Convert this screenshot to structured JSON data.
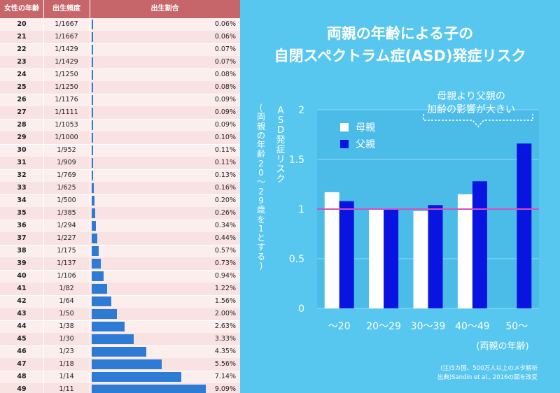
{
  "table": {
    "headers": [
      "女性の年齢",
      "出生頻度",
      "出生割合"
    ],
    "rows": [
      {
        "age": "20",
        "freq": "1/1667",
        "pct": "0.06%",
        "value": 0.06
      },
      {
        "age": "21",
        "freq": "1/1667",
        "pct": "0.06%",
        "value": 0.06
      },
      {
        "age": "22",
        "freq": "1/1429",
        "pct": "0.07%",
        "value": 0.07
      },
      {
        "age": "23",
        "freq": "1/1429",
        "pct": "0.07%",
        "value": 0.07
      },
      {
        "age": "24",
        "freq": "1/1250",
        "pct": "0.08%",
        "value": 0.08
      },
      {
        "age": "25",
        "freq": "1/1250",
        "pct": "0.08%",
        "value": 0.08
      },
      {
        "age": "26",
        "freq": "1/1176",
        "pct": "0.09%",
        "value": 0.09
      },
      {
        "age": "27",
        "freq": "1/1111",
        "pct": "0.09%",
        "value": 0.09
      },
      {
        "age": "28",
        "freq": "1/1053",
        "pct": "0.09%",
        "value": 0.09
      },
      {
        "age": "29",
        "freq": "1/1000",
        "pct": "0.10%",
        "value": 0.1
      },
      {
        "age": "30",
        "freq": "1/952",
        "pct": "0.11%",
        "value": 0.11
      },
      {
        "age": "31",
        "freq": "1/909",
        "pct": "0.11%",
        "value": 0.11
      },
      {
        "age": "32",
        "freq": "1/769",
        "pct": "0.13%",
        "value": 0.13
      },
      {
        "age": "33",
        "freq": "1/625",
        "pct": "0.16%",
        "value": 0.16
      },
      {
        "age": "34",
        "freq": "1/500",
        "pct": "0.20%",
        "value": 0.2
      },
      {
        "age": "35",
        "freq": "1/385",
        "pct": "0.26%",
        "value": 0.26
      },
      {
        "age": "36",
        "freq": "1/294",
        "pct": "0.34%",
        "value": 0.34
      },
      {
        "age": "37",
        "freq": "1/227",
        "pct": "0.44%",
        "value": 0.44
      },
      {
        "age": "38",
        "freq": "1/175",
        "pct": "0.57%",
        "value": 0.57
      },
      {
        "age": "39",
        "freq": "1/137",
        "pct": "0.73%",
        "value": 0.73
      },
      {
        "age": "40",
        "freq": "1/106",
        "pct": "0.94%",
        "value": 0.94
      },
      {
        "age": "41",
        "freq": "1/82",
        "pct": "1.22%",
        "value": 1.22
      },
      {
        "age": "42",
        "freq": "1/64",
        "pct": "1.56%",
        "value": 1.56
      },
      {
        "age": "43",
        "freq": "1/50",
        "pct": "2.00%",
        "value": 2.0
      },
      {
        "age": "44",
        "freq": "1/38",
        "pct": "2.63%",
        "value": 2.63
      },
      {
        "age": "45",
        "freq": "1/30",
        "pct": "3.33%",
        "value": 3.33
      },
      {
        "age": "46",
        "freq": "1/23",
        "pct": "4.35%",
        "value": 4.35
      },
      {
        "age": "47",
        "freq": "1/18",
        "pct": "5.56%",
        "value": 5.56
      },
      {
        "age": "48",
        "freq": "1/14",
        "pct": "7.14%",
        "value": 7.14
      },
      {
        "age": "49",
        "freq": "1/11",
        "pct": "9.09%",
        "value": 9.09
      }
    ]
  },
  "chart": {
    "title_line1": "両親の年齢による子の",
    "title_line2": "自閉スペクトラム症(ASD)発症リスク",
    "ylabel": "ASD発症リスク",
    "ylabel_note": "(両親の年齢20〜29歳を1とする)",
    "xlabel": "(両親の年齢)",
    "annotation_line1": "母親より父親の",
    "annotation_line2": "加齢の影響が大きい",
    "note_line1": "(注)5カ国、500万人以上のメタ解析",
    "note_line2": "出典)Sandin et al., 2016の図を改変",
    "colors": {
      "mother": "#ffffff",
      "father": "#0a14e0",
      "reference": "#d34fc2",
      "background": "#58c7f0"
    }
  },
  "chart_data": {
    "type": "bar",
    "categories": [
      "〜20",
      "20〜29",
      "30〜39",
      "40〜49",
      "50〜"
    ],
    "series": [
      {
        "name": "母親",
        "values": [
          1.17,
          1.0,
          0.98,
          1.15,
          null
        ]
      },
      {
        "name": "父親",
        "values": [
          1.08,
          1.0,
          1.04,
          1.28,
          1.66
        ]
      }
    ],
    "ylim": [
      0,
      2
    ],
    "yticks": [
      "0",
      "0.5",
      "1",
      "1.5",
      "2"
    ],
    "reference_line": 1,
    "grid": true,
    "legend_placement": "top-left"
  }
}
